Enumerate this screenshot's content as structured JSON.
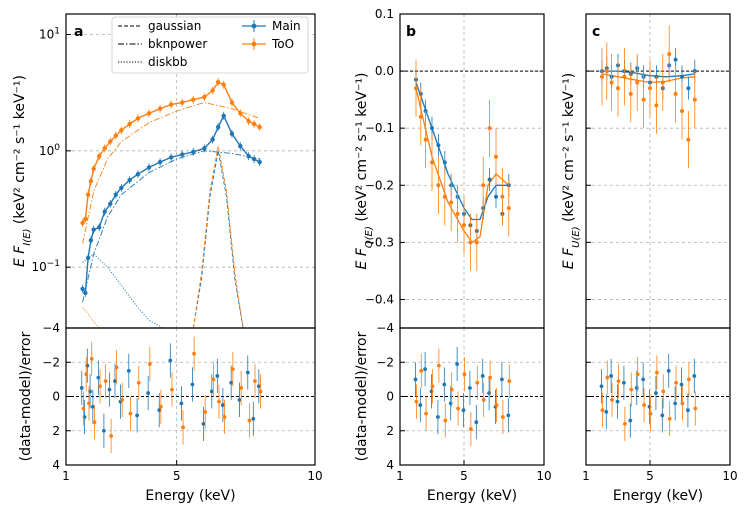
{
  "chart_data": [
    {
      "panel": "a",
      "type": "line",
      "xscale": "linear",
      "yscale": "log",
      "xlim": [
        1,
        10
      ],
      "ylim": [
        0.03,
        15
      ],
      "ylabel_main": "E F",
      "ylabel_sub": "I(E)",
      "ylabel_unit": "(keV² cm⁻² s⁻¹ keV⁻¹)",
      "yticks": [
        {
          "value": 0.1,
          "base": "10",
          "exp": "−1"
        },
        {
          "value": 1,
          "base": "10",
          "exp": "0"
        },
        {
          "value": 10,
          "base": "10",
          "exp": "1"
        }
      ],
      "legend": {
        "placement": "top-center",
        "entries": [
          "gaussian",
          "bknpower",
          "diskbb",
          "Main",
          "ToO"
        ]
      },
      "series": [
        {
          "name": "Main",
          "color": "#1f77b4",
          "x": [
            1.6,
            1.7,
            1.8,
            1.9,
            2.0,
            2.2,
            2.4,
            2.6,
            2.8,
            3.0,
            3.3,
            3.6,
            4.0,
            4.4,
            4.8,
            5.2,
            5.6,
            6.0,
            6.3,
            6.5,
            6.7,
            7.0,
            7.3,
            7.6,
            7.8,
            8.0
          ],
          "y": [
            0.065,
            0.06,
            0.12,
            0.17,
            0.21,
            0.22,
            0.3,
            0.35,
            0.42,
            0.48,
            0.56,
            0.63,
            0.72,
            0.8,
            0.88,
            0.93,
            0.98,
            1.05,
            1.25,
            1.6,
            2.0,
            1.4,
            1.1,
            0.9,
            0.85,
            0.8
          ]
        },
        {
          "name": "ToO",
          "color": "#ff7f0e",
          "x": [
            1.6,
            1.7,
            1.8,
            1.9,
            2.0,
            2.2,
            2.4,
            2.6,
            2.8,
            3.0,
            3.3,
            3.6,
            4.0,
            4.4,
            4.8,
            5.2,
            5.6,
            6.0,
            6.3,
            6.5,
            6.7,
            7.0,
            7.3,
            7.6,
            7.8,
            8.0
          ],
          "y": [
            0.24,
            0.26,
            0.42,
            0.55,
            0.7,
            0.9,
            1.05,
            1.2,
            1.35,
            1.5,
            1.7,
            1.9,
            2.1,
            2.3,
            2.5,
            2.6,
            2.75,
            2.9,
            3.3,
            3.9,
            3.7,
            2.6,
            2.1,
            1.8,
            1.7,
            1.6
          ]
        }
      ],
      "model_components": [
        {
          "name": "bknpower Main",
          "color": "#1f77b4",
          "style": "dashdot",
          "x": [
            1.6,
            2.0,
            2.5,
            3.0,
            4.0,
            5.0,
            6.0,
            7.0,
            8.0
          ],
          "y": [
            0.05,
            0.13,
            0.27,
            0.42,
            0.65,
            0.85,
            1.0,
            0.95,
            0.85
          ]
        },
        {
          "name": "bknpower ToO",
          "color": "#ff7f0e",
          "style": "dashdot",
          "x": [
            1.6,
            2.0,
            2.5,
            3.0,
            4.0,
            5.0,
            6.0,
            7.0,
            8.0
          ],
          "y": [
            0.16,
            0.45,
            0.85,
            1.2,
            1.75,
            2.2,
            2.6,
            2.3,
            1.9
          ]
        },
        {
          "name": "diskbb Main",
          "color": "#1f77b4",
          "style": "dotted",
          "x": [
            1.6,
            2.0,
            2.5,
            3.0,
            3.5,
            4.0,
            4.5
          ],
          "y": [
            0.11,
            0.13,
            0.1,
            0.07,
            0.048,
            0.035,
            0.025
          ]
        },
        {
          "name": "diskbb ToO",
          "color": "#ff7f0e",
          "style": "dotted",
          "x": [
            1.6,
            1.8,
            2.0,
            2.2,
            2.4
          ],
          "y": [
            0.045,
            0.04,
            0.034,
            0.029,
            0.025
          ]
        },
        {
          "name": "gaussian Main",
          "color": "#1f77b4",
          "style": "dashed",
          "x": [
            5.6,
            5.9,
            6.2,
            6.5,
            6.8,
            7.1,
            7.4
          ],
          "y": [
            0.03,
            0.08,
            0.4,
            1.0,
            0.4,
            0.08,
            0.03
          ]
        },
        {
          "name": "gaussian ToO",
          "color": "#ff7f0e",
          "style": "dashed",
          "x": [
            5.6,
            5.9,
            6.2,
            6.5,
            6.8,
            7.1,
            7.4
          ],
          "y": [
            0.03,
            0.09,
            0.45,
            1.1,
            0.45,
            0.09,
            0.03
          ]
        }
      ],
      "residuals": {
        "ylabel": "(data-model)/error",
        "ylim": [
          -4,
          4
        ],
        "yticks": [
          "−4",
          "−2",
          "0",
          "2",
          "4"
        ],
        "Main": [
          0.5,
          -1.2,
          1.8,
          0.3,
          -0.6,
          1.1,
          -2.0,
          0.4,
          0.9,
          -0.3,
          1.5,
          -1.1,
          0.2,
          -0.8,
          2.1,
          -0.4,
          0.7,
          -1.6,
          0.3,
          1.2,
          -0.5,
          0.8,
          -0.2,
          1.4,
          -1.3,
          0.6
        ],
        "ToO": [
          -0.7,
          1.3,
          -0.4,
          2.2,
          -1.5,
          0.6,
          0.9,
          -2.3,
          1.7,
          -0.2,
          -1.0,
          0.8,
          1.9,
          -0.6,
          0.4,
          -1.8,
          2.5,
          -0.9,
          1.0,
          -0.3,
          -1.2,
          1.6,
          0.5,
          -1.4,
          0.9,
          0.3
        ]
      },
      "xticks": [
        "1",
        "5",
        "10"
      ],
      "xlabel": "Energy (keV)"
    },
    {
      "panel": "b",
      "type": "line",
      "xscale": "linear",
      "xlim": [
        1,
        10
      ],
      "ylim": [
        -0.45,
        0.1
      ],
      "yticks": [
        "0.1",
        "0.0",
        "−0.1",
        "−0.2",
        "−0.3",
        "−0.4"
      ],
      "ylabel_main": "E F",
      "ylabel_sub": "Q(E)",
      "ylabel_unit": "(keV² cm⁻² s⁻¹ keV⁻¹)",
      "series": [
        {
          "name": "Main",
          "color": "#1f77b4",
          "x": [
            2.0,
            2.3,
            2.6,
            3.0,
            3.4,
            3.8,
            4.2,
            4.6,
            5.0,
            5.4,
            5.8,
            6.2,
            6.6,
            7.0,
            7.4,
            7.8
          ],
          "y": [
            -0.015,
            -0.04,
            -0.07,
            -0.1,
            -0.13,
            -0.16,
            -0.2,
            -0.22,
            -0.25,
            -0.27,
            -0.28,
            -0.24,
            -0.19,
            -0.22,
            -0.25,
            -0.2
          ],
          "err": 0.02
        },
        {
          "name": "ToO",
          "color": "#ff7f0e",
          "x": [
            2.0,
            2.3,
            2.6,
            3.0,
            3.4,
            3.8,
            4.2,
            4.6,
            5.0,
            5.4,
            5.8,
            6.2,
            6.6,
            7.0,
            7.4,
            7.8
          ],
          "y": [
            -0.03,
            -0.08,
            -0.12,
            -0.16,
            -0.2,
            -0.22,
            -0.23,
            -0.25,
            -0.27,
            -0.3,
            -0.3,
            -0.2,
            -0.1,
            -0.15,
            -0.22,
            -0.24
          ],
          "err": 0.05
        }
      ],
      "model": [
        {
          "name": "Main model",
          "color": "#1f77b4",
          "x": [
            2.0,
            3.0,
            4.0,
            5.0,
            5.5,
            6.0,
            6.5,
            7.0,
            7.8
          ],
          "y": [
            -0.02,
            -0.1,
            -0.18,
            -0.24,
            -0.26,
            -0.26,
            -0.22,
            -0.2,
            -0.2
          ]
        },
        {
          "name": "ToO model",
          "color": "#ff7f0e",
          "x": [
            2.0,
            3.0,
            4.0,
            5.0,
            5.5,
            6.0,
            6.5,
            7.0,
            7.8
          ],
          "y": [
            -0.03,
            -0.15,
            -0.23,
            -0.28,
            -0.3,
            -0.29,
            -0.2,
            -0.18,
            -0.2
          ]
        }
      ],
      "residuals": {
        "ylabel": "(data-model)/error",
        "ylim": [
          -4,
          4
        ],
        "yticks": [
          "−4",
          "−2",
          "0",
          "2",
          "4"
        ],
        "Main": [
          1.0,
          -0.5,
          1.6,
          0.3,
          -1.2,
          0.7,
          -0.4,
          1.9,
          -0.8,
          0.5,
          -1.5,
          1.2,
          0.2,
          -0.6,
          1.0,
          -1.1
        ],
        "ToO": [
          -0.3,
          1.5,
          -1.0,
          0.6,
          1.8,
          -1.4,
          0.4,
          -0.7,
          1.3,
          -1.9,
          0.8,
          -0.2,
          1.1,
          -0.5,
          -1.2,
          0.9
        ]
      },
      "xticks": [
        "1",
        "5",
        "10"
      ],
      "xlabel": "Energy (keV)"
    },
    {
      "panel": "c",
      "type": "line",
      "xscale": "linear",
      "xlim": [
        1,
        10
      ],
      "ylim": [
        -0.45,
        0.1
      ],
      "ylabel_main": "E F",
      "ylabel_sub": "U(E)",
      "ylabel_unit": "(keV² cm⁻² s⁻¹ keV⁻¹)",
      "series": [
        {
          "name": "Main",
          "color": "#1f77b4",
          "x": [
            2.0,
            2.3,
            2.6,
            3.0,
            3.4,
            3.8,
            4.2,
            4.6,
            5.0,
            5.4,
            5.8,
            6.2,
            6.6,
            7.0,
            7.4,
            7.8
          ],
          "y": [
            0.0,
            0.005,
            -0.01,
            0.01,
            0.0,
            -0.005,
            0.005,
            -0.01,
            -0.02,
            -0.01,
            -0.03,
            0.01,
            0.02,
            -0.01,
            -0.03,
            0.0
          ],
          "err": 0.02
        },
        {
          "name": "ToO",
          "color": "#ff7f0e",
          "x": [
            2.0,
            2.3,
            2.6,
            3.0,
            3.4,
            3.8,
            4.2,
            4.6,
            5.0,
            5.4,
            5.8,
            6.2,
            6.6,
            7.0,
            7.4,
            7.8
          ],
          "y": [
            -0.01,
            0.0,
            -0.02,
            -0.03,
            -0.01,
            -0.04,
            -0.02,
            -0.05,
            -0.03,
            -0.06,
            -0.02,
            0.03,
            -0.04,
            -0.07,
            -0.12,
            -0.05
          ],
          "err": 0.05
        }
      ],
      "model": [
        {
          "name": "Main model",
          "color": "#1f77b4",
          "x": [
            2.0,
            3.0,
            4.0,
            5.0,
            6.0,
            7.0,
            7.8
          ],
          "y": [
            0.0,
            0.0,
            -0.003,
            -0.008,
            -0.01,
            -0.008,
            -0.005
          ]
        },
        {
          "name": "ToO model",
          "color": "#ff7f0e",
          "x": [
            2.0,
            3.0,
            4.0,
            5.0,
            6.0,
            7.0,
            7.8
          ],
          "y": [
            -0.005,
            -0.01,
            -0.015,
            -0.02,
            -0.018,
            -0.012,
            -0.01
          ]
        }
      ],
      "residuals": {
        "ylabel": "",
        "ylim": [
          -4,
          4
        ],
        "Main": [
          0.6,
          -0.9,
          1.2,
          -0.3,
          0.8,
          -1.4,
          0.5,
          1.0,
          -0.6,
          0.2,
          -1.1,
          1.5,
          -0.4,
          0.7,
          -0.8,
          1.2
        ],
        "ToO": [
          -0.8,
          1.1,
          -0.2,
          0.9,
          -1.6,
          0.4,
          1.3,
          -0.5,
          -1.0,
          1.4,
          0.3,
          -1.3,
          0.8,
          -0.4,
          1.0,
          -0.7
        ]
      },
      "xticks": [
        "1",
        "5",
        "10"
      ],
      "xlabel": "Energy (keV)"
    }
  ]
}
